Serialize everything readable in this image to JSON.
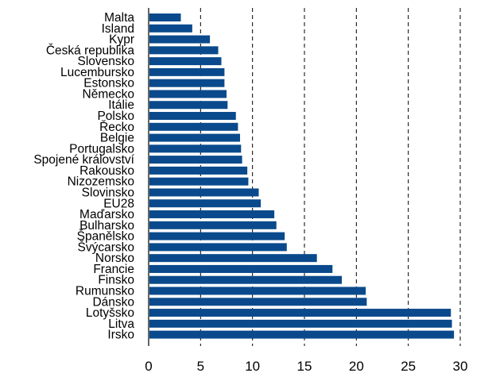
{
  "chart_data": {
    "type": "bar",
    "orientation": "horizontal",
    "categories": [
      "Malta",
      "Island",
      "Kypr",
      "Česká republika",
      "Slovensko",
      "Lucembursko",
      "Estonsko",
      "Německo",
      "Itálie",
      "Polsko",
      "Řecko",
      "Belgie",
      "Portugalsko",
      "Spojené království",
      "Rakousko",
      "Nizozemsko",
      "Slovinsko",
      "EU28",
      "Maďarsko",
      "Bulharsko",
      "Španělsko",
      "Švýcarsko",
      "Norsko",
      "Francie",
      "Finsko",
      "Rumunsko",
      "Dánsko",
      "Lotyšsko",
      "Litva",
      "Irsko"
    ],
    "values": [
      3.1,
      4.2,
      5.9,
      6.7,
      7.0,
      7.3,
      7.3,
      7.5,
      7.6,
      8.4,
      8.6,
      8.8,
      8.9,
      9.0,
      9.5,
      9.6,
      10.6,
      10.8,
      12.1,
      12.3,
      13.1,
      13.3,
      16.2,
      17.7,
      18.6,
      20.9,
      21.0,
      29.1,
      29.2,
      29.4
    ],
    "xlim": [
      0,
      30
    ],
    "x_ticks": [
      0,
      5,
      10,
      15,
      20,
      25,
      30
    ],
    "gridlines": "dashed vertical",
    "bar_color": "#0a4a8c"
  }
}
